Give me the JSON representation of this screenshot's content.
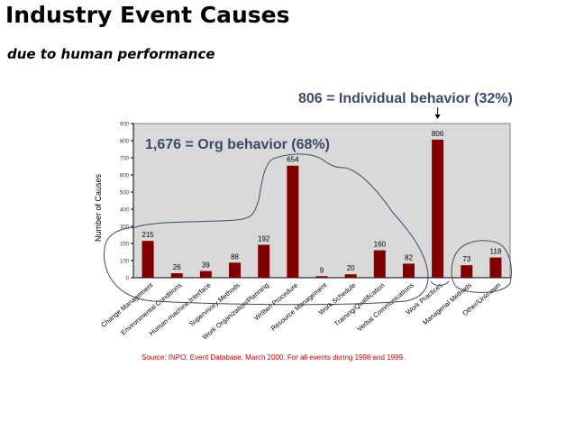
{
  "header": {
    "title": "Industry Event Causes",
    "subtitle": "due to  human performance"
  },
  "annotations": {
    "individual": "806 = Individual behavior (32%)",
    "org": "1,676 = Org behavior (68%)"
  },
  "source": "Source: INPO, Event Database, March 2000. For all events during 1998 and 1999.",
  "colors": {
    "bar": "#800000",
    "plot_background": "#d9d9d9",
    "annotation": "#3b4a6b",
    "source_text": "#cc0000"
  },
  "chart_data": {
    "type": "bar",
    "ylabel": "Number of Causes",
    "xlabel": "",
    "ylim": [
      0,
      900
    ],
    "yticks": [
      0,
      100,
      200,
      300,
      400,
      500,
      600,
      700,
      800,
      900
    ],
    "grid": false,
    "categories": [
      "Change Management",
      "Environmental Conditions",
      "Human-machine Interface",
      "Supervisory Methods",
      "Work Organization/Planning",
      "Written Procedure",
      "Resource Management",
      "Work Schedule",
      "Training/Qualification",
      "Verbal Communications",
      "Work Practices",
      "Managerial Methods",
      "Other/Unknown"
    ],
    "values": [
      215,
      26,
      39,
      88,
      192,
      654,
      9,
      20,
      160,
      82,
      806,
      73,
      118
    ]
  }
}
